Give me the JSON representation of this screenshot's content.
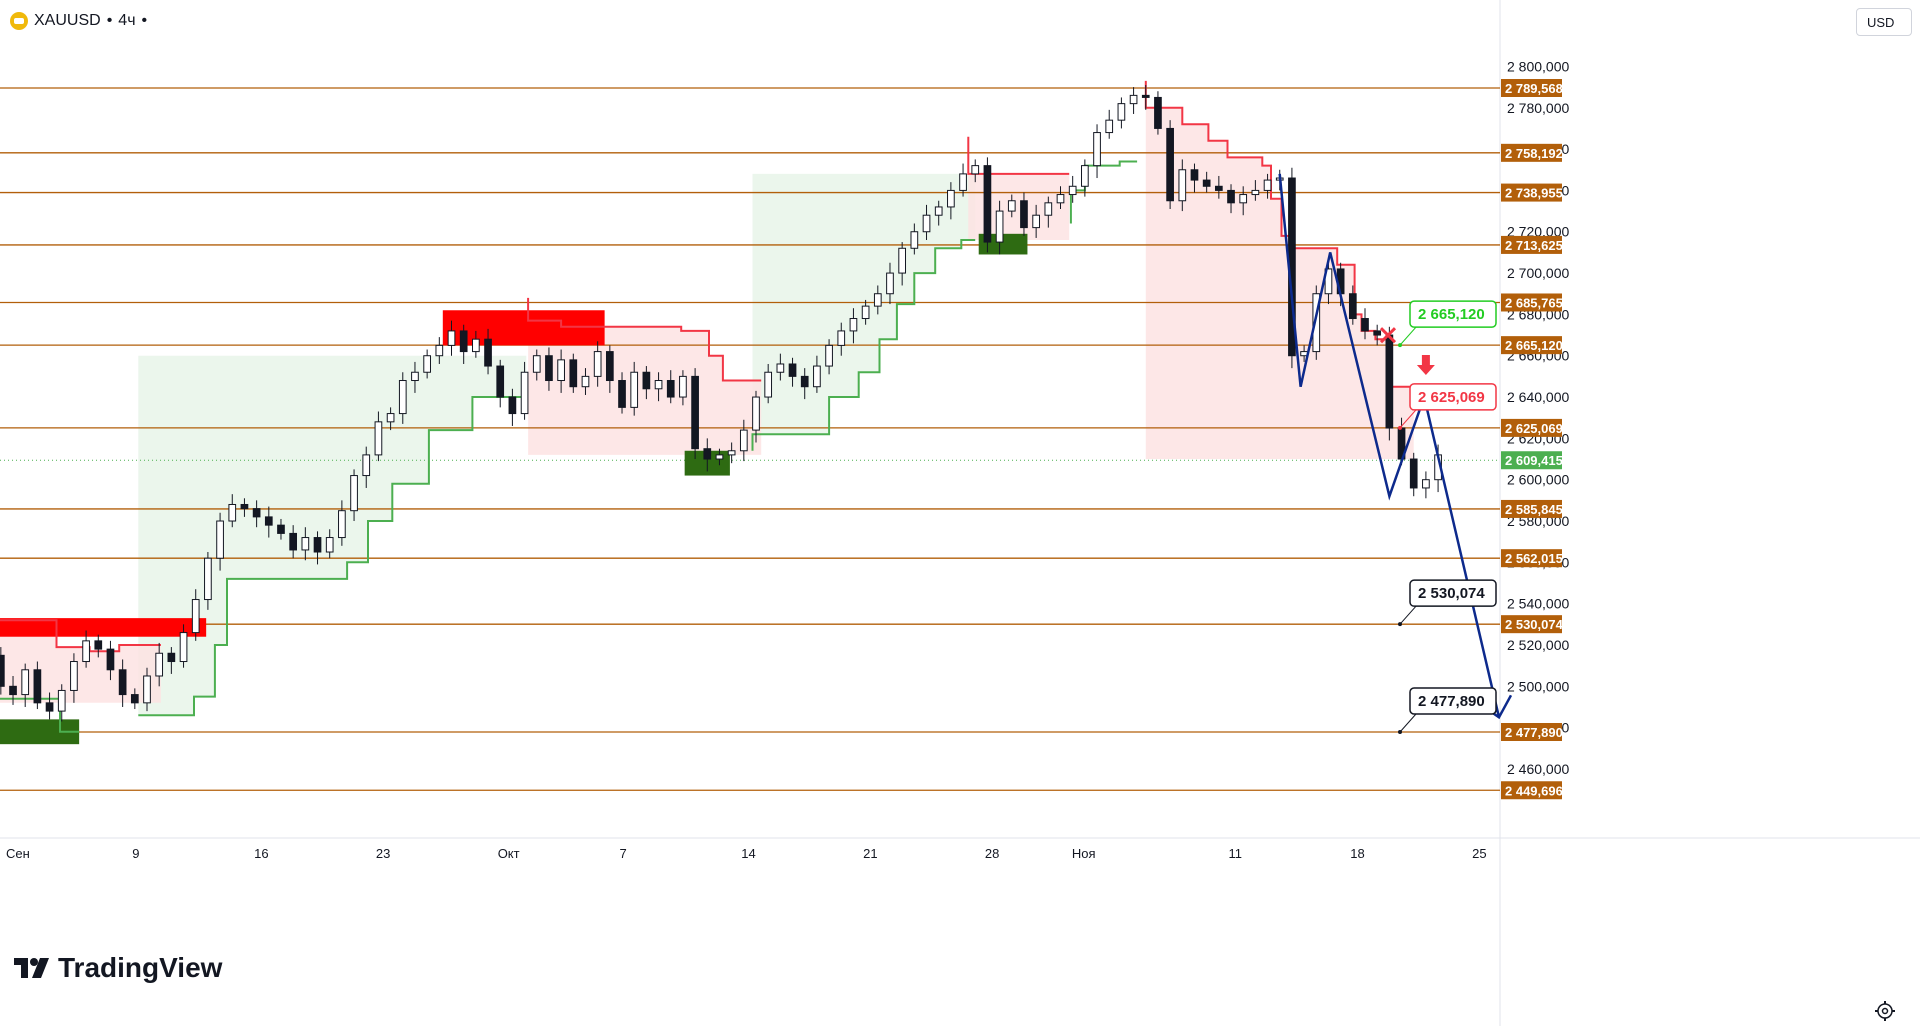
{
  "header": {
    "symbol": "XAUUSD",
    "sep": "•",
    "interval": "4ч",
    "interval_suffix": "•",
    "currency": "USD"
  },
  "branding": {
    "logo_text": "TradingView"
  },
  "colors": {
    "level_line": "#b25f0a",
    "label_bg": "#b25f0a",
    "up_line": "#4caf50",
    "down_line": "#f23645",
    "up_fill": "#e8f5e9",
    "down_fill": "#fde3e3",
    "candle": "#131722",
    "forecast": "#0d2a8c",
    "price_label": "#4caf50",
    "supply_zone": "#ff0000",
    "demand_zone": "#2e6b12"
  },
  "chart_data": {
    "type": "candlestick",
    "y_axis": {
      "ylim": [
        2435,
        2830
      ],
      "tick_labels": [
        "2 800,000",
        "2 780,000",
        "2 760,000",
        "2 740,000",
        "2 720,000",
        "2 700,000",
        "2 680,000",
        "2 660,000",
        "2 640,000",
        "2 620,000",
        "2 600,000",
        "2 580,000",
        "2 560,000",
        "2 540,000",
        "2 520,000",
        "2 500,000",
        "2 480,000",
        "2 460,000"
      ],
      "tick_values": [
        2800,
        2780,
        2760,
        2740,
        2720,
        2700,
        2680,
        2660,
        2640,
        2620,
        2600,
        2580,
        2560,
        2540,
        2520,
        2500,
        2480,
        2460
      ]
    },
    "x_axis": {
      "tick_labels": [
        "Сен",
        "9",
        "16",
        "23",
        "Окт",
        "7",
        "14",
        "21",
        "28",
        "Ноя",
        "11",
        "18",
        "25"
      ],
      "tick_days": [
        2,
        9,
        16,
        23,
        30,
        37,
        44,
        51,
        58,
        63,
        72,
        79,
        86
      ]
    },
    "levels": [
      {
        "value": 2789.568,
        "label": "2 789,568"
      },
      {
        "value": 2758.192,
        "label": "2 758,192"
      },
      {
        "value": 2738.955,
        "label": "2 738,955"
      },
      {
        "value": 2713.625,
        "label": "2 713,625"
      },
      {
        "value": 2685.765,
        "label": "2 685,765"
      },
      {
        "value": 2665.12,
        "label": "2 665,120"
      },
      {
        "value": 2625.069,
        "label": "2 625,069"
      },
      {
        "value": 2585.845,
        "label": "2 585,845"
      },
      {
        "value": 2562.015,
        "label": "2 562,015"
      },
      {
        "value": 2530.074,
        "label": "2 530,074"
      },
      {
        "value": 2477.89,
        "label": "2 477,890"
      },
      {
        "value": 2449.696,
        "label": "2 449,696"
      }
    ],
    "current_price": {
      "value": 2609.415,
      "label": "2 609,415"
    },
    "callouts": [
      {
        "value": 2665.12,
        "label": "2 665,120",
        "style": "green"
      },
      {
        "value": 2625.069,
        "label": "2 625,069",
        "style": "red"
      },
      {
        "value": 2530.074,
        "label": "2 530,074",
        "style": "black"
      },
      {
        "value": 2477.89,
        "label": "2 477,890",
        "style": "black"
      }
    ],
    "candles_close": [
      [
        0.4,
        2515
      ],
      [
        1.1,
        2500
      ],
      [
        1.8,
        2496
      ],
      [
        2.5,
        2508
      ],
      [
        3.2,
        2492
      ],
      [
        3.9,
        2488
      ],
      [
        4.6,
        2498
      ],
      [
        5.3,
        2512
      ],
      [
        6.0,
        2522
      ],
      [
        6.7,
        2518
      ],
      [
        7.4,
        2508
      ],
      [
        8.1,
        2496
      ],
      [
        8.8,
        2492
      ],
      [
        9.5,
        2505
      ],
      [
        10.2,
        2516
      ],
      [
        10.9,
        2512
      ],
      [
        11.6,
        2526
      ],
      [
        12.3,
        2542
      ],
      [
        13.0,
        2562
      ],
      [
        13.7,
        2580
      ],
      [
        14.4,
        2588
      ],
      [
        15.1,
        2586
      ],
      [
        15.8,
        2582
      ],
      [
        16.5,
        2578
      ],
      [
        17.2,
        2574
      ],
      [
        17.9,
        2566
      ],
      [
        18.6,
        2572
      ],
      [
        19.3,
        2565
      ],
      [
        20.0,
        2572
      ],
      [
        20.7,
        2585
      ],
      [
        21.4,
        2602
      ],
      [
        22.1,
        2612
      ],
      [
        22.8,
        2628
      ],
      [
        23.5,
        2632
      ],
      [
        24.2,
        2648
      ],
      [
        24.9,
        2652
      ],
      [
        25.6,
        2660
      ],
      [
        26.3,
        2665
      ],
      [
        27.0,
        2672
      ],
      [
        27.7,
        2662
      ],
      [
        28.4,
        2668
      ],
      [
        29.1,
        2655
      ],
      [
        29.8,
        2640
      ],
      [
        30.5,
        2632
      ],
      [
        31.2,
        2652
      ],
      [
        31.9,
        2660
      ],
      [
        32.6,
        2648
      ],
      [
        33.3,
        2658
      ],
      [
        34.0,
        2645
      ],
      [
        34.7,
        2650
      ],
      [
        35.4,
        2662
      ],
      [
        36.1,
        2648
      ],
      [
        36.8,
        2635
      ],
      [
        37.5,
        2652
      ],
      [
        38.2,
        2644
      ],
      [
        38.9,
        2648
      ],
      [
        39.6,
        2640
      ],
      [
        40.3,
        2650
      ],
      [
        41.0,
        2615
      ],
      [
        41.7,
        2610
      ],
      [
        42.4,
        2612
      ],
      [
        43.1,
        2614
      ],
      [
        43.8,
        2624
      ],
      [
        44.5,
        2640
      ],
      [
        45.2,
        2652
      ],
      [
        45.9,
        2656
      ],
      [
        46.6,
        2650
      ],
      [
        47.3,
        2645
      ],
      [
        48.0,
        2655
      ],
      [
        48.7,
        2665
      ],
      [
        49.4,
        2672
      ],
      [
        50.1,
        2678
      ],
      [
        50.8,
        2684
      ],
      [
        51.5,
        2690
      ],
      [
        52.2,
        2700
      ],
      [
        52.9,
        2712
      ],
      [
        53.6,
        2720
      ],
      [
        54.3,
        2728
      ],
      [
        55.0,
        2732
      ],
      [
        55.7,
        2740
      ],
      [
        56.4,
        2748
      ],
      [
        57.1,
        2752
      ],
      [
        57.8,
        2715
      ],
      [
        58.5,
        2730
      ],
      [
        59.2,
        2735
      ],
      [
        59.9,
        2722
      ],
      [
        60.6,
        2728
      ],
      [
        61.3,
        2734
      ],
      [
        62.0,
        2738
      ],
      [
        62.7,
        2742
      ],
      [
        63.4,
        2752
      ],
      [
        64.1,
        2768
      ],
      [
        64.8,
        2774
      ],
      [
        65.5,
        2782
      ],
      [
        66.2,
        2786
      ],
      [
        66.9,
        2785
      ],
      [
        67.6,
        2770
      ],
      [
        68.3,
        2735
      ],
      [
        69.0,
        2750
      ],
      [
        69.7,
        2745
      ],
      [
        70.4,
        2742
      ],
      [
        71.1,
        2740
      ],
      [
        71.8,
        2734
      ],
      [
        72.5,
        2738
      ],
      [
        73.2,
        2740
      ],
      [
        73.9,
        2745
      ],
      [
        74.6,
        2746
      ],
      [
        75.3,
        2660
      ],
      [
        76.0,
        2662
      ],
      [
        76.7,
        2690
      ],
      [
        77.4,
        2702
      ],
      [
        78.1,
        2690
      ],
      [
        78.8,
        2678
      ],
      [
        79.5,
        2672
      ],
      [
        80.2,
        2670
      ],
      [
        80.9,
        2625
      ],
      [
        81.6,
        2610
      ],
      [
        82.3,
        2596
      ],
      [
        83.0,
        2600
      ],
      [
        83.7,
        2612
      ]
    ],
    "forecast_path": [
      [
        74.6,
        2748
      ],
      [
        75.8,
        2645
      ],
      [
        77.5,
        2710
      ],
      [
        80.9,
        2592
      ],
      [
        82.9,
        2640
      ],
      [
        87.2,
        2485
      ]
    ]
  }
}
